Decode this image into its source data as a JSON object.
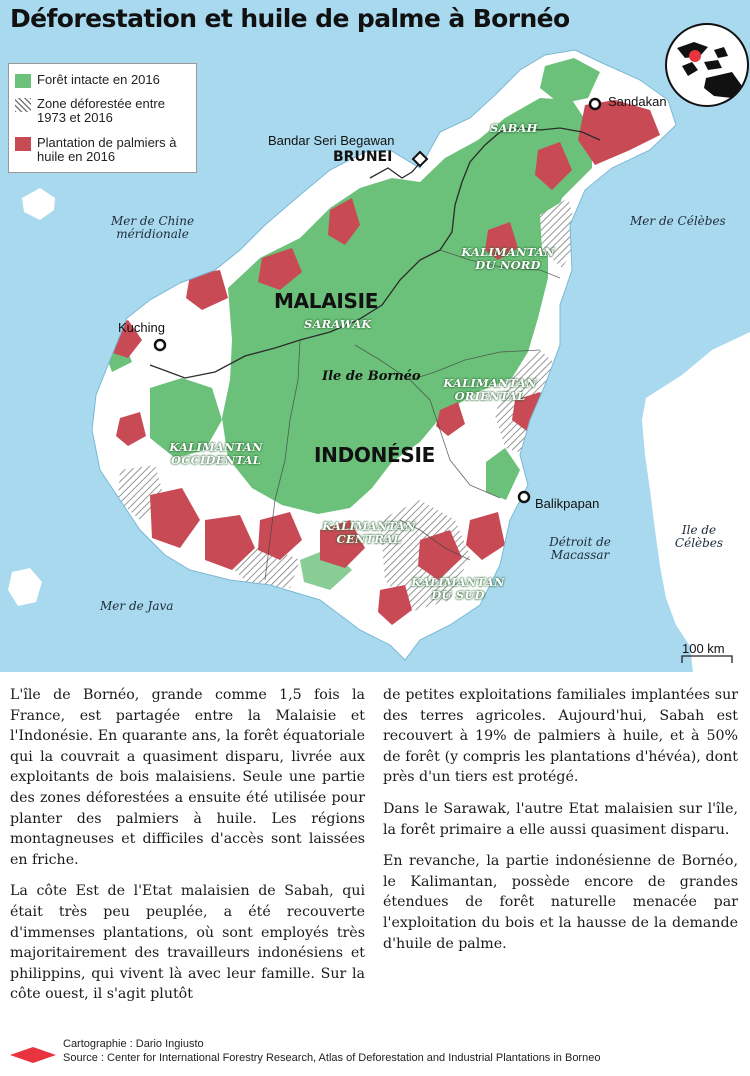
{
  "title": "Déforestation et huile de palme à Bornéo",
  "legend": {
    "forest": "Forêt intacte en 2016",
    "deforested": "Zone déforestée entre 1973 et 2016",
    "palm": "Plantation de palmiers à huile en 2016"
  },
  "labels": {
    "sea_china": "Mer de Chine méridionale",
    "sea_celebes": "Mer de Célèbes",
    "sea_java": "Mer de Java",
    "strait_macassar": "Détroit de Macassar",
    "island_celebes": "Ile de Célèbes",
    "malaisie": "MALAISIE",
    "indonesie": "INDONÉSIE",
    "brunei": "BRUNEI",
    "bandar": "Bandar Seri Begawan",
    "sabah": "SABAH",
    "sarawak": "SARAWAK",
    "kal_nord": "KALIMANTAN DU NORD",
    "kal_oriental": "KALIMANTAN ORIENTAL",
    "kal_occidental": "KALIMANTAN OCCIDENTAL",
    "kal_central": "KALIMANTAN CENTRAL",
    "kal_sud": "KALIMANTAN DU SUD",
    "borneo": "Ile de Bornéo",
    "kuching": "Kuching",
    "sandakan": "Sandakan",
    "balikpapan": "Balikpapan",
    "scale": "100 km"
  },
  "article": {
    "col1": [
      "L'île de Bornéo, grande comme 1,5 fois la France, est partagée entre la Malaisie et l'Indonésie. En quarante ans, la forêt équatoriale qui la couvrait a quasiment disparu, livrée aux exploitants de bois malaisiens. Seule une partie des zones déforestées a ensuite été utilisée pour planter des palmiers à huile. Les régions montagneuses et difficiles d'accès sont laissées en friche.",
      "La côte Est de l'Etat malaisien de Sabah, qui était très peu peuplée, a été recouverte d'immenses plantations, où sont employés très majoritairement des travailleurs indonésiens et philippins, qui vivent là avec leur famille. Sur la côte ouest, il s'agit plutôt"
    ],
    "col2": [
      "de petites exploitations familiales implantées sur des terres agricoles. Aujourd'hui, Sabah est recouvert à 19% de palmiers à huile, et à 50% de forêt (y compris les plantations d'hévéa), dont près d'un tiers est protégé.",
      "Dans le Sarawak, l'autre Etat malaisien sur l'île, la forêt primaire a elle aussi quasiment disparu.",
      "En revanche, la partie indonésienne de Bornéo, le Kalimantan, possède encore de grandes étendues de forêt naturelle menacée par l'exploitation du bois et la hausse de la demande d'huile de palme."
    ]
  },
  "credits": {
    "cartography": "Cartographie : Dario Ingiusto",
    "source": "Source : Center for International Forestry Research, Atlas of Deforestation and Industrial Plantations in Borneo"
  },
  "colors": {
    "sea": "#a9d9ee",
    "forest": "#6cc17a",
    "palm": "#c84a55",
    "land": "#ffffff",
    "accent": "#e8343f"
  }
}
